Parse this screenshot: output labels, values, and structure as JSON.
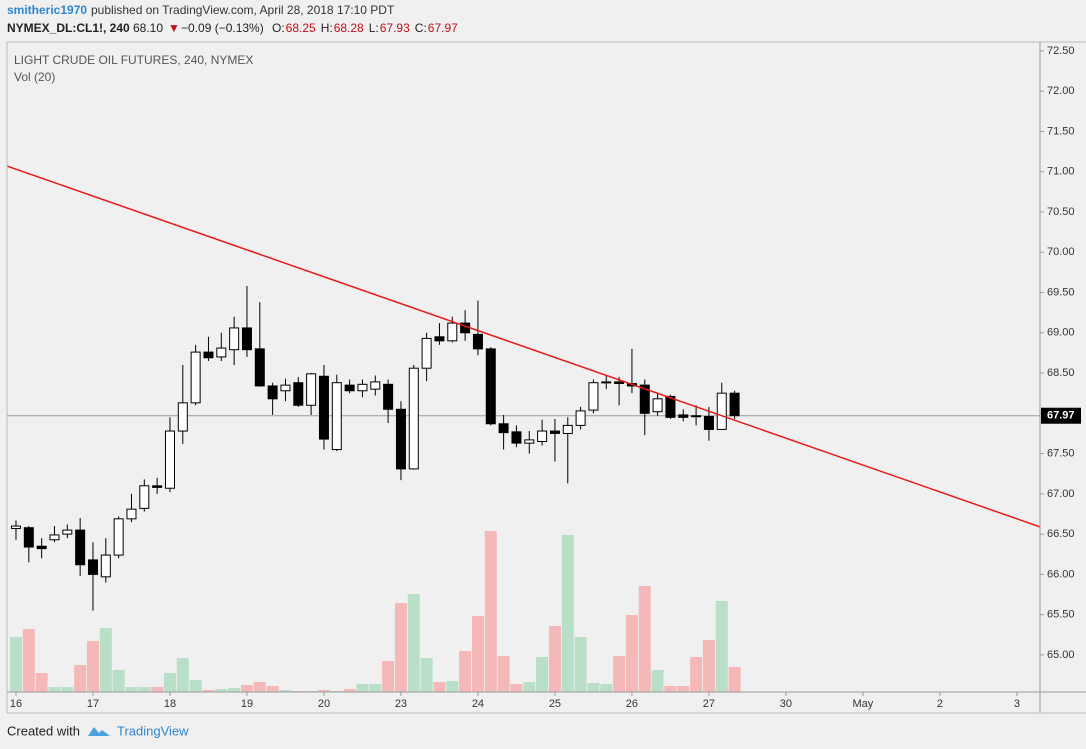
{
  "header": {
    "author": "smitheric1970",
    "published": "published on TradingView.com, April 28, 2018 17:10 PDT",
    "symbol": "NYMEX_DL:CL1!, 240",
    "last": "68.10",
    "arrow": "▼",
    "change": "−0.09 (−0.13%)",
    "ohlc": [
      {
        "label": "O:",
        "value": "68.25"
      },
      {
        "label": "H:",
        "value": "68.28"
      },
      {
        "label": "L:",
        "value": "67.93"
      },
      {
        "label": "C:",
        "value": "67.97"
      }
    ]
  },
  "chart_data": {
    "type": "candlestick",
    "title": "LIGHT CRUDE OIL FUTURES, 240, NYMEX",
    "subtitle": "Vol (20)",
    "up_color": "#ffffff",
    "down_color": "#000000",
    "volume_up_color": "#b9dfc9",
    "volume_down_color": "#f4b8b8",
    "trend_color": "#e8191b",
    "open": [
      66.57,
      66.58,
      66.35,
      66.43,
      66.5,
      66.55,
      66.18,
      65.97,
      66.24,
      66.69,
      66.82,
      67.1,
      67.07,
      67.78,
      68.13,
      68.76,
      68.7,
      68.79,
      69.06,
      68.8,
      68.34,
      68.28,
      68.38,
      68.1,
      68.46,
      67.55,
      68.35,
      68.28,
      68.3,
      68.36,
      68.05,
      67.31,
      68.56,
      68.95,
      68.9,
      69.12,
      68.98,
      68.8,
      67.87,
      67.77,
      67.63,
      67.65,
      67.78,
      67.75,
      67.85,
      68.04,
      68.38,
      68.39,
      68.37,
      68.35,
      68.02,
      68.21,
      67.98,
      67.97,
      67.96,
      67.8,
      68.25
    ],
    "high": [
      66.67,
      66.6,
      66.45,
      66.6,
      66.62,
      66.7,
      66.4,
      66.45,
      66.72,
      67.0,
      67.18,
      67.2,
      67.95,
      68.6,
      68.85,
      68.95,
      69.0,
      69.2,
      69.58,
      69.38,
      68.38,
      68.43,
      68.45,
      68.5,
      68.6,
      68.48,
      68.42,
      68.42,
      68.47,
      68.42,
      68.15,
      68.6,
      69.0,
      69.12,
      69.2,
      69.28,
      69.4,
      68.82,
      67.98,
      67.85,
      67.78,
      67.92,
      67.93,
      67.95,
      68.08,
      68.42,
      68.48,
      68.45,
      68.8,
      68.42,
      68.25,
      68.23,
      68.05,
      68.1,
      68.08,
      68.38,
      68.28
    ],
    "low": [
      66.43,
      66.15,
      66.2,
      66.4,
      66.45,
      65.98,
      65.55,
      65.9,
      66.2,
      66.65,
      66.78,
      67.0,
      67.02,
      67.62,
      68.1,
      68.65,
      68.65,
      68.6,
      68.7,
      68.33,
      67.98,
      68.15,
      68.08,
      67.98,
      67.55,
      67.53,
      68.25,
      68.2,
      68.22,
      67.88,
      67.17,
      67.3,
      68.4,
      68.85,
      68.88,
      68.9,
      68.72,
      67.85,
      67.55,
      67.58,
      67.5,
      67.6,
      67.4,
      67.13,
      67.8,
      68.0,
      68.3,
      68.1,
      68.25,
      67.73,
      67.97,
      67.93,
      67.9,
      67.85,
      67.66,
      67.8,
      67.93
    ],
    "close": [
      66.6,
      66.34,
      66.32,
      66.49,
      66.55,
      66.12,
      66.0,
      66.24,
      66.69,
      66.81,
      67.1,
      67.08,
      67.78,
      68.13,
      68.76,
      68.69,
      68.81,
      69.06,
      68.79,
      68.34,
      68.18,
      68.35,
      68.1,
      68.49,
      67.68,
      68.38,
      68.28,
      68.36,
      68.39,
      68.05,
      67.31,
      68.56,
      68.93,
      68.9,
      69.12,
      69.0,
      68.8,
      67.87,
      67.76,
      67.63,
      67.67,
      67.78,
      67.75,
      67.85,
      68.03,
      68.38,
      68.39,
      68.37,
      68.34,
      68.0,
      68.18,
      67.95,
      67.95,
      67.96,
      67.8,
      68.25,
      67.97
    ],
    "volume": [
      55,
      63,
      19,
      5,
      5,
      27,
      51,
      64,
      22,
      5,
      5,
      5,
      19,
      34,
      12,
      2,
      3,
      4,
      7,
      10,
      6,
      2,
      1,
      1,
      2,
      1,
      3,
      8,
      8,
      31,
      89,
      98,
      34,
      10,
      11,
      41,
      76,
      161,
      36,
      8,
      10,
      35,
      66,
      157,
      55,
      9,
      8,
      36,
      77,
      106,
      22,
      6,
      6,
      35,
      52,
      91,
      25
    ],
    "trendline": {
      "x": [
        -0.7,
        79.8
      ],
      "y": [
        71.07,
        66.59
      ]
    },
    "last_price": 67.97,
    "xlim": [
      -0.7,
      79.8
    ],
    "ylim": [
      64.54,
      72.61
    ],
    "xticks": [
      {
        "value": 0,
        "label": "16"
      },
      {
        "value": 6,
        "label": "17"
      },
      {
        "value": 12,
        "label": "18"
      },
      {
        "value": 18,
        "label": "19"
      },
      {
        "value": 24,
        "label": "20"
      },
      {
        "value": 30,
        "label": "23"
      },
      {
        "value": 36,
        "label": "24"
      },
      {
        "value": 42,
        "label": "25"
      },
      {
        "value": 48,
        "label": "26"
      },
      {
        "value": 54,
        "label": "27"
      },
      {
        "value": 60,
        "label": "30"
      },
      {
        "value": 66,
        "label": "May"
      },
      {
        "value": 72,
        "label": "2"
      },
      {
        "value": 78,
        "label": "3"
      }
    ],
    "yticks": [
      {
        "value": 65,
        "label": "65.00"
      },
      {
        "value": 65.5,
        "label": "65.50"
      },
      {
        "value": 66,
        "label": "66.00"
      },
      {
        "value": 66.5,
        "label": "66.50"
      },
      {
        "value": 67,
        "label": "67.00"
      },
      {
        "value": 67.5,
        "label": "67.50"
      },
      {
        "value": 68,
        "label": "68.00"
      },
      {
        "value": 68.5,
        "label": "68.50"
      },
      {
        "value": 69,
        "label": "69.00"
      },
      {
        "value": 69.5,
        "label": "69.50"
      },
      {
        "value": 70,
        "label": "70.00"
      },
      {
        "value": 70.5,
        "label": "70.50"
      },
      {
        "value": 71,
        "label": "71.00"
      },
      {
        "value": 71.5,
        "label": "71.50"
      },
      {
        "value": 72,
        "label": "72.00"
      },
      {
        "value": 72.5,
        "label": "72.50"
      }
    ]
  },
  "footer": {
    "created": "Created with",
    "brand": "TradingView"
  }
}
